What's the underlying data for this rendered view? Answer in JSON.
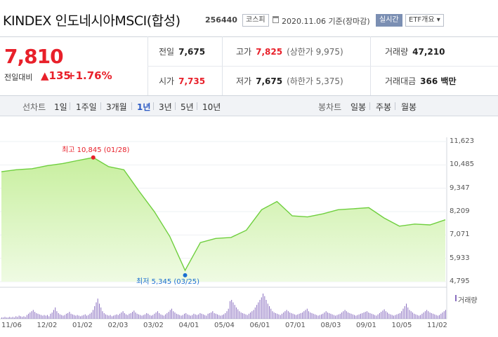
{
  "header": {
    "name": "KINDEX 인도네시아MSCI(합성)",
    "code": "256440",
    "market": "코스피",
    "date_text": "2020.11.06 기준(장마감)",
    "realtime_label": "실시간",
    "etf_label": "ETF개요 ▾"
  },
  "quote": {
    "price": "7,810",
    "change_label": "전일대비",
    "change_value": "▲135",
    "change_pct": "+1.76%"
  },
  "stats": {
    "prev_close": {
      "label": "전일",
      "value": "7,675"
    },
    "open": {
      "label": "시가",
      "value": "7,735"
    },
    "high": {
      "label": "고가",
      "value": "7,825",
      "limit": "(상한가 9,975)"
    },
    "low": {
      "label": "저가",
      "value": "7,675",
      "limit": "(하한가 5,375)"
    },
    "volume": {
      "label": "거래량",
      "value": "47,210"
    },
    "amount": {
      "label": "거래대금",
      "value": "366 백만"
    }
  },
  "tabs": {
    "line_label": "선차트",
    "periods": [
      "1일",
      "1주일",
      "3개월",
      "1년",
      "3년",
      "5년",
      "10년"
    ],
    "selected": "1년",
    "candle_label": "봉차트",
    "candles": [
      "일봉",
      "주봉",
      "월봉"
    ]
  },
  "annotations": {
    "high": "최고 10,845 (01/28)",
    "low": "최저 5,345 (03/25)",
    "volume": "거래량"
  },
  "colors": {
    "line": "#6fcf3e",
    "fill_top": "#c8ef9f",
    "fill_bottom": "#effbe3",
    "up": "#e8202a",
    "low_marker": "#1b6fd1",
    "volume": "#8a6fc0"
  },
  "chart_data": {
    "type": "area",
    "title": "",
    "y_ticks": [
      "11,623",
      "10,485",
      "9,347",
      "8,209",
      "7,071",
      "5,933",
      "4,795"
    ],
    "ylim": [
      4795,
      11623
    ],
    "x_ticks": [
      "11/06",
      "12/02",
      "01/02",
      "02/03",
      "03/02",
      "04/01",
      "05/04",
      "06/01",
      "07/01",
      "08/03",
      "09/01",
      "10/05",
      "11/02"
    ],
    "series": [
      {
        "x": [
          "11/06",
          "11/20",
          "12/02",
          "12/16",
          "01/02",
          "01/15",
          "01/28",
          "02/10",
          "02/20",
          "03/02",
          "03/09",
          "03/16",
          "03/25",
          "04/01",
          "04/15",
          "05/04",
          "05/18",
          "06/01",
          "06/08",
          "06/15",
          "07/01",
          "07/15",
          "08/03",
          "08/17",
          "09/01",
          "09/15",
          "10/05",
          "10/19",
          "11/02",
          "11/06"
        ],
        "values": [
          10150,
          10250,
          10300,
          10450,
          10550,
          10700,
          10845,
          10400,
          10250,
          9200,
          8200,
          7000,
          5345,
          6700,
          6900,
          6950,
          7300,
          8300,
          8700,
          8000,
          7950,
          8100,
          8300,
          8350,
          8400,
          7900,
          7500,
          7600,
          7560,
          7810
        ]
      }
    ],
    "volume_label": "거래량",
    "volume": [
      2,
      2,
      3,
      2,
      2,
      3,
      2,
      3,
      2,
      4,
      3,
      5,
      4,
      3,
      4,
      3,
      6,
      8,
      10,
      12,
      14,
      11,
      9,
      8,
      7,
      6,
      5,
      6,
      5,
      6,
      4,
      8,
      10,
      14,
      18,
      12,
      9,
      7,
      6,
      5,
      6,
      8,
      9,
      11,
      8,
      7,
      6,
      5,
      6,
      5,
      4,
      5,
      6,
      7,
      5,
      6,
      8,
      10,
      14,
      20,
      26,
      32,
      24,
      18,
      12,
      9,
      7,
      6,
      5,
      6,
      4,
      5,
      6,
      7,
      6,
      8,
      10,
      12,
      9,
      7,
      6,
      8,
      9,
      11,
      13,
      10,
      8,
      7,
      6,
      5,
      6,
      7,
      9,
      8,
      6,
      5,
      6,
      8,
      10,
      12,
      9,
      7,
      6,
      5,
      7,
      9,
      11,
      14,
      16,
      12,
      10,
      8,
      7,
      6,
      5,
      6,
      8,
      9,
      7,
      6,
      5,
      6,
      8,
      7,
      6,
      7,
      9,
      8,
      7,
      6,
      5,
      8,
      9,
      10,
      12,
      9,
      8,
      7,
      6,
      5,
      6,
      7,
      9,
      12,
      16,
      28,
      30,
      26,
      22,
      18,
      15,
      12,
      10,
      9,
      8,
      7,
      6,
      8,
      10,
      12,
      14,
      18,
      22,
      26,
      30,
      34,
      40,
      36,
      30,
      24,
      20,
      16,
      12,
      10,
      9,
      8,
      7,
      6,
      8,
      10,
      12,
      14,
      12,
      10,
      9,
      8,
      7,
      6,
      7,
      8,
      9,
      10,
      12,
      14,
      16,
      12,
      10,
      9,
      8,
      7,
      6,
      5,
      6,
      7,
      8,
      10,
      12,
      10,
      9,
      8,
      7,
      6,
      5,
      6,
      7,
      8,
      10,
      12,
      14,
      12,
      10,
      9,
      8,
      7,
      6,
      5,
      6,
      7,
      8,
      9,
      10,
      11,
      12,
      10,
      9,
      8,
      7,
      6,
      5,
      7,
      9,
      11,
      13,
      15,
      12,
      10,
      8,
      7,
      6,
      5,
      6,
      7,
      8,
      9,
      12,
      16,
      20,
      24,
      18,
      14,
      12,
      10,
      8,
      7,
      6,
      5,
      6,
      8,
      10,
      12,
      14,
      12,
      10,
      9,
      8,
      7,
      6,
      5,
      6,
      8,
      10,
      12,
      14
    ]
  }
}
